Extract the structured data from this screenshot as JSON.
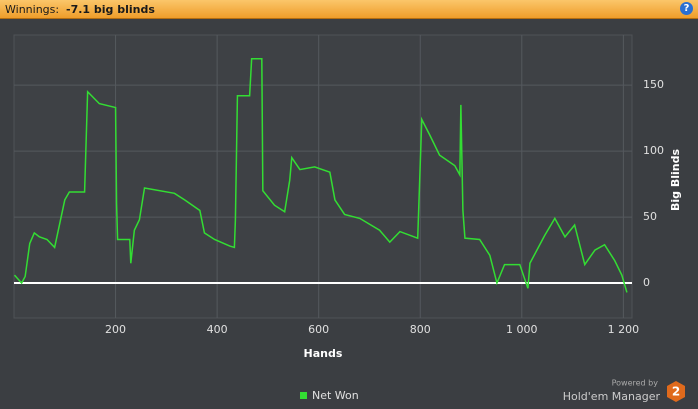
{
  "header": {
    "label": "Winnings:",
    "value": "-7.1 big blinds"
  },
  "chart_data": {
    "type": "line",
    "x_label": "Hands",
    "y_label": "Big Blinds",
    "x": [
      1,
      8,
      15,
      22,
      31,
      40,
      50,
      65,
      80,
      100,
      109,
      139,
      145,
      168,
      200,
      202,
      204,
      228,
      230,
      237,
      247,
      257,
      316,
      336,
      366,
      375,
      395,
      425,
      434,
      436,
      440,
      464,
      468,
      488,
      490,
      513,
      533,
      543,
      547,
      563,
      592,
      622,
      632,
      651,
      681,
      720,
      740,
      760,
      795,
      803,
      819,
      838,
      868,
      878,
      880,
      884,
      888,
      917,
      937,
      951,
      966,
      996,
      1012,
      1016,
      1045,
      1065,
      1085,
      1104,
      1124,
      1144,
      1163,
      1183,
      1197,
      1207
    ],
    "series": [
      {
        "name": "Net Won",
        "color": "#33dd33",
        "values": [
          6,
          3,
          0,
          5,
          30,
          38,
          35,
          33,
          27,
          63,
          69,
          69,
          145,
          136,
          133,
          60,
          33,
          33,
          15,
          40,
          48,
          72,
          68,
          63,
          55,
          38,
          33,
          28,
          27,
          48,
          142,
          142,
          170,
          170,
          70,
          59,
          54,
          78,
          95,
          86,
          88,
          84,
          63,
          52,
          49,
          40,
          31,
          39,
          34,
          124,
          112,
          97,
          89,
          82,
          135,
          55,
          34,
          33,
          21,
          0,
          14,
          14,
          -4,
          15,
          36,
          49,
          35,
          44,
          14,
          25,
          29,
          17,
          6,
          -7.1
        ]
      }
    ],
    "xlim": [
      0,
      1217
    ],
    "ylim": [
      -26.5,
      188
    ],
    "xticks": [
      200,
      400,
      600,
      800,
      {
        "value": 1000,
        "label": "1 000"
      },
      {
        "value": 1200,
        "label": "1 200"
      }
    ],
    "yticks": [
      0,
      50,
      100,
      150
    ],
    "grid": true,
    "zero_line": true
  },
  "footer": {
    "powered": "Powered by",
    "brand": "Hold'em Manager",
    "logo": "2"
  }
}
